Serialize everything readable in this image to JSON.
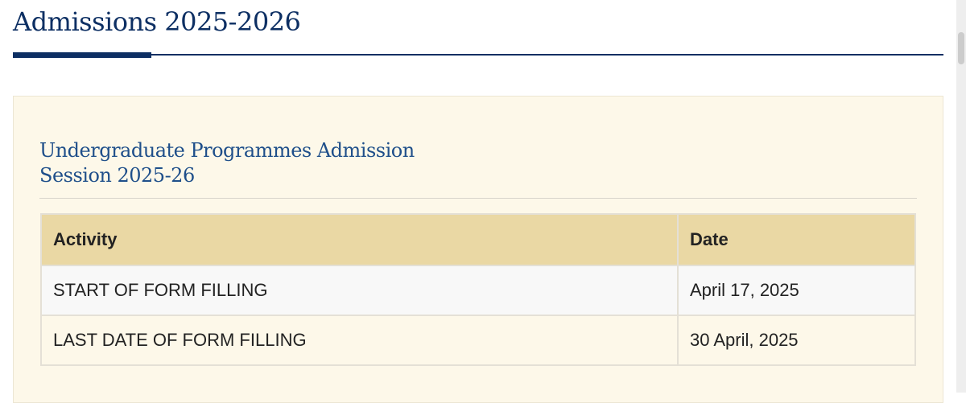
{
  "header": {
    "title": "Admissions 2025-2026"
  },
  "panel": {
    "heading_line1": "Undergraduate Programmes Admission",
    "heading_line2": "Session 2025-26"
  },
  "table": {
    "columns": [
      "Activity",
      "Date"
    ],
    "rows": [
      [
        "START OF FORM FILLING",
        "April 17, 2025"
      ],
      [
        "LAST DATE OF FORM FILLING",
        "30 April, 2025"
      ]
    ]
  }
}
